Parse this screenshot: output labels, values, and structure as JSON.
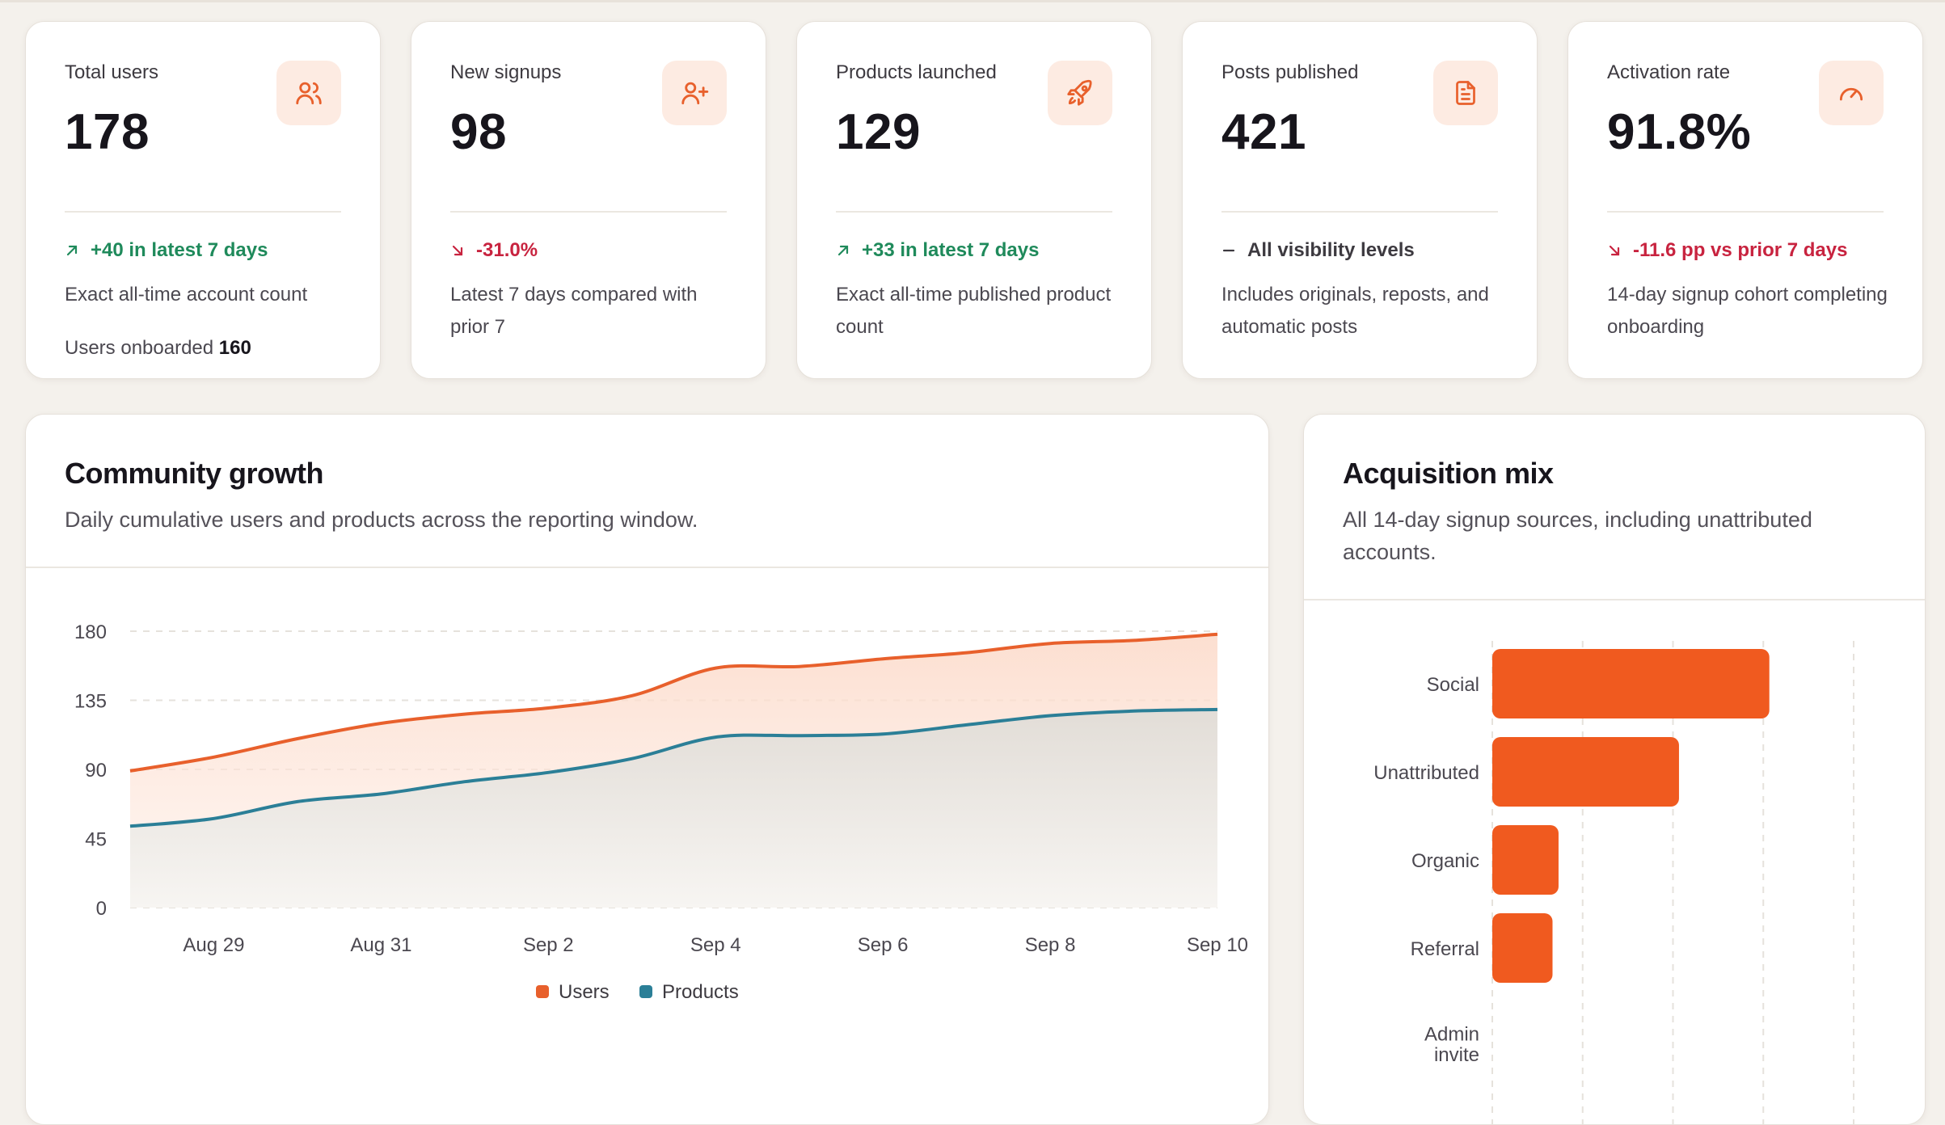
{
  "kpis": [
    {
      "label": "Total users",
      "value": "178",
      "icon": "users-icon",
      "trend_dir": "up",
      "trend": "+40 in latest 7 days",
      "note": "Exact all-time account count",
      "extra_label": "Users onboarded",
      "extra_value": "160"
    },
    {
      "label": "New signups",
      "value": "98",
      "icon": "user-plus-icon",
      "trend_dir": "down",
      "trend": "-31.0%",
      "note": "Latest 7 days compared with prior 7"
    },
    {
      "label": "Products launched",
      "value": "129",
      "icon": "rocket-icon",
      "trend_dir": "up",
      "trend": "+33 in latest 7 days",
      "note": "Exact all-time published product count"
    },
    {
      "label": "Posts published",
      "value": "421",
      "icon": "document-icon",
      "trend_dir": "flat",
      "trend": "All visibility levels",
      "note": "Includes originals, reposts, and automatic posts"
    },
    {
      "label": "Activation rate",
      "value": "91.8%",
      "icon": "gauge-icon",
      "trend_dir": "down",
      "trend": "-11.6 pp vs prior 7 days",
      "note": "14-day signup cohort completing onboarding"
    }
  ],
  "growth": {
    "title": "Community growth",
    "subtitle": "Daily cumulative users and products across the reporting window."
  },
  "acquisition": {
    "title": "Acquisition mix",
    "subtitle": "All 14-day signup sources, including unattributed accounts."
  },
  "colors": {
    "accent": "#f05a1f",
    "users_line": "#e8602c",
    "products_line": "#2b7f97",
    "up": "#1f8a5b",
    "down": "#c8233f"
  },
  "chart_data": [
    {
      "type": "area",
      "x": [
        "Aug 28",
        "Aug 29",
        "Aug 30",
        "Aug 31",
        "Sep 1",
        "Sep 2",
        "Sep 3",
        "Sep 4",
        "Sep 5",
        "Sep 6",
        "Sep 7",
        "Sep 8",
        "Sep 9",
        "Sep 10"
      ],
      "xticks": [
        "Aug 29",
        "Aug 31",
        "Sep 2",
        "Sep 4",
        "Sep 6",
        "Sep 8",
        "Sep 10"
      ],
      "yticks": [
        0,
        45,
        90,
        135,
        180
      ],
      "ylim": [
        0,
        180
      ],
      "grid": true,
      "legend": "bottom",
      "series": [
        {
          "name": "Users",
          "values": [
            89,
            98,
            110,
            120,
            126,
            130,
            138,
            156,
            157,
            162,
            166,
            172,
            174,
            178
          ]
        },
        {
          "name": "Products",
          "values": [
            53,
            58,
            69,
            74,
            82,
            88,
            97,
            111,
            112,
            113,
            119,
            125,
            128,
            129
          ]
        }
      ]
    },
    {
      "type": "bar",
      "orientation": "horizontal",
      "categories": [
        "Social",
        "Unattributed",
        "Organic",
        "Referral",
        "Admin invite"
      ],
      "values": [
        46,
        31,
        11,
        10,
        0
      ],
      "xlim": [
        0,
        60
      ],
      "grid": true
    }
  ]
}
